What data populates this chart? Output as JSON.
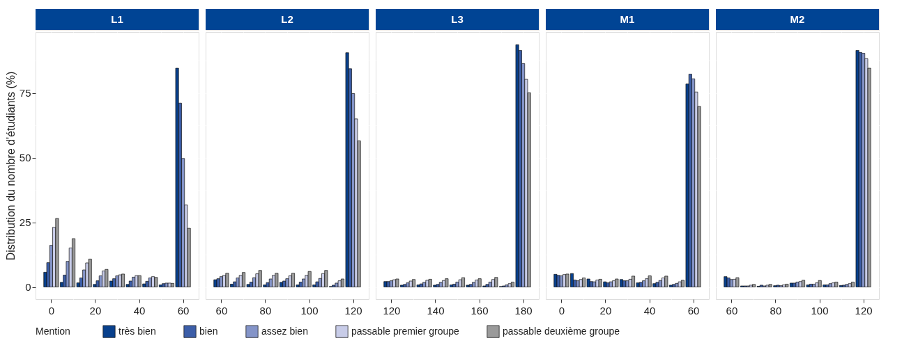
{
  "chart_data": [
    {
      "type": "bar",
      "title": "L1",
      "ylabel": "Distribution du nombre d'étudiants (%)",
      "legend_title": "Mention",
      "legend": "bottom",
      "grid": true,
      "x": [
        0,
        7.5,
        15,
        22.5,
        30,
        37.5,
        45,
        52.5,
        60
      ],
      "xlim": [
        -7.1,
        67.1
      ],
      "xticks": [
        0,
        {
          "value": 10,
          "label": null
        },
        20,
        {
          "value": 30,
          "label": null
        },
        40,
        {
          "value": 50,
          "label": null
        },
        60
      ],
      "ylim": [
        -4.7,
        98.6
      ],
      "yticks": [
        0,
        {
          "value": 12.5,
          "label": null
        },
        25,
        {
          "value": 37.5,
          "label": null
        },
        50,
        {
          "value": 62.5,
          "label": null
        },
        75,
        {
          "value": 87.5,
          "label": null
        }
      ],
      "series": [
        {
          "name": "très bien",
          "color": "#08408c",
          "values": [
            5.7,
            1.8,
            1.6,
            1.0,
            2.3,
            1.0,
            1.2,
            0.8,
            84.6
          ]
        },
        {
          "name": "bien",
          "color": "#3c5ea8",
          "values": [
            9.4,
            4.6,
            3.5,
            2.4,
            3.2,
            2.3,
            2.2,
            1.3,
            71.1
          ]
        },
        {
          "name": "assez bien",
          "color": "#8494c8",
          "values": [
            16.1,
            9.9,
            6.6,
            4.3,
            4.3,
            3.8,
            3.5,
            1.5,
            49.7
          ]
        },
        {
          "name": "passable premier groupe",
          "color": "#c8cce8",
          "values": [
            23.1,
            15.1,
            9.3,
            6.2,
            4.7,
            4.4,
            4.0,
            1.5,
            31.7
          ]
        },
        {
          "name": "passable deuxième groupe",
          "color": "#9a9a9a",
          "values": [
            26.5,
            18.7,
            10.8,
            6.8,
            5.0,
            4.4,
            3.7,
            1.4,
            22.7
          ]
        }
      ]
    },
    {
      "type": "bar",
      "title": "L2",
      "grid": true,
      "tick_labels": "x",
      "x": [
        60,
        67.5,
        75,
        82.5,
        90,
        97.5,
        105,
        112.5,
        120
      ],
      "xlim": [
        52.9,
        127.1
      ],
      "xticks": [
        60,
        {
          "value": 70,
          "label": null
        },
        80,
        {
          "value": 90,
          "label": null
        },
        100,
        {
          "value": 110,
          "label": null
        },
        120
      ],
      "ylim": [
        -4.7,
        98.6
      ],
      "yticks": [
        0,
        {
          "value": 12.5,
          "label": null
        },
        25,
        {
          "value": 37.5,
          "label": null
        },
        50,
        {
          "value": 62.5,
          "label": null
        },
        75,
        {
          "value": 87.5,
          "label": null
        }
      ],
      "series": [
        {
          "name": "très bien",
          "color": "#08408c",
          "values": [
            2.8,
            1.1,
            1.0,
            0.8,
            1.8,
            0.8,
            0.8,
            0.2,
            90.6
          ]
        },
        {
          "name": "bien",
          "color": "#3c5ea8",
          "values": [
            3.2,
            2.0,
            1.9,
            1.7,
            2.3,
            1.9,
            2.0,
            0.7,
            84.4
          ]
        },
        {
          "name": "assez bien",
          "color": "#8494c8",
          "values": [
            4.0,
            3.5,
            3.6,
            3.1,
            3.2,
            3.1,
            3.3,
            1.5,
            74.8
          ]
        },
        {
          "name": "passable premier groupe",
          "color": "#c8cce8",
          "values": [
            4.5,
            4.5,
            5.1,
            4.5,
            4.3,
            4.5,
            5.2,
            2.4,
            65.0
          ]
        },
        {
          "name": "passable deuxième groupe",
          "color": "#9a9a9a",
          "values": [
            5.3,
            5.6,
            6.4,
            5.3,
            5.3,
            6.0,
            6.4,
            3.1,
            56.5
          ]
        }
      ]
    },
    {
      "type": "bar",
      "title": "L3",
      "grid": true,
      "tick_labels": "x",
      "x": [
        120,
        127.5,
        135,
        142.5,
        150,
        157.5,
        165,
        172.5,
        180
      ],
      "xlim": [
        112.9,
        187.1
      ],
      "xticks": [
        120,
        {
          "value": 130,
          "label": null
        },
        140,
        {
          "value": 150,
          "label": null
        },
        160,
        {
          "value": 170,
          "label": null
        },
        180
      ],
      "ylim": [
        -4.7,
        98.6
      ],
      "yticks": [
        0,
        {
          "value": 12.5,
          "label": null
        },
        25,
        {
          "value": 37.5,
          "label": null
        },
        50,
        {
          "value": 62.5,
          "label": null
        },
        75,
        {
          "value": 87.5,
          "label": null
        }
      ],
      "series": [
        {
          "name": "très bien",
          "color": "#08408c",
          "values": [
            2.1,
            0.7,
            0.8,
            0.7,
            0.8,
            0.7,
            0.4,
            0.2,
            93.7
          ]
        },
        {
          "name": "bien",
          "color": "#3c5ea8",
          "values": [
            2.1,
            1.0,
            1.2,
            1.0,
            1.1,
            1.0,
            1.0,
            0.4,
            91.5
          ]
        },
        {
          "name": "assez bien",
          "color": "#8494c8",
          "values": [
            2.4,
            1.6,
            1.8,
            1.8,
            1.9,
            1.8,
            1.9,
            0.8,
            86.4
          ]
        },
        {
          "name": "passable premier groupe",
          "color": "#c8cce8",
          "values": [
            2.8,
            2.3,
            2.6,
            2.5,
            2.8,
            2.7,
            2.9,
            1.3,
            80.3
          ]
        },
        {
          "name": "passable deuxième groupe",
          "color": "#9a9a9a",
          "values": [
            3.1,
            2.9,
            3.0,
            3.2,
            3.6,
            3.2,
            3.7,
            1.9,
            75.1
          ]
        }
      ]
    },
    {
      "type": "bar",
      "title": "M1",
      "grid": true,
      "tick_labels": "x",
      "x": [
        0,
        7.5,
        15,
        22.5,
        30,
        37.5,
        45,
        52.5,
        60
      ],
      "xlim": [
        -7.1,
        67.1
      ],
      "xticks": [
        0,
        {
          "value": 10,
          "label": null
        },
        20,
        {
          "value": 30,
          "label": null
        },
        40,
        {
          "value": 50,
          "label": null
        },
        60
      ],
      "ylim": [
        -4.7,
        98.6
      ],
      "yticks": [
        0,
        {
          "value": 12.5,
          "label": null
        },
        25,
        {
          "value": 37.5,
          "label": null
        },
        50,
        {
          "value": 62.5,
          "label": null
        },
        75,
        {
          "value": 87.5,
          "label": null
        }
      ],
      "series": [
        {
          "name": "très bien",
          "color": "#08408c",
          "values": [
            4.9,
            5.2,
            3.1,
            2.0,
            2.9,
            1.6,
            1.3,
            0.7,
            78.5
          ]
        },
        {
          "name": "bien",
          "color": "#3c5ea8",
          "values": [
            4.5,
            2.7,
            2.1,
            1.6,
            2.4,
            1.8,
            1.8,
            1.0,
            82.3
          ]
        },
        {
          "name": "assez bien",
          "color": "#8494c8",
          "values": [
            4.3,
            2.4,
            2.0,
            2.0,
            2.4,
            2.4,
            2.5,
            1.4,
            80.5
          ]
        },
        {
          "name": "passable premier groupe",
          "color": "#c8cce8",
          "values": [
            4.8,
            2.9,
            2.7,
            2.4,
            3.0,
            3.2,
            3.5,
            2.0,
            75.4
          ]
        },
        {
          "name": "passable deuxième groupe",
          "color": "#9a9a9a",
          "values": [
            5.0,
            3.5,
            3.0,
            3.1,
            4.2,
            4.3,
            4.2,
            2.6,
            69.8
          ]
        }
      ]
    },
    {
      "type": "bar",
      "title": "M2",
      "grid": true,
      "tick_labels": "x",
      "x": [
        60,
        67.5,
        75,
        82.5,
        90,
        97.5,
        105,
        112.5,
        120
      ],
      "xlim": [
        52.9,
        127.1
      ],
      "xticks": [
        60,
        {
          "value": 70,
          "label": null
        },
        80,
        {
          "value": 90,
          "label": null
        },
        100,
        {
          "value": 110,
          "label": null
        },
        120
      ],
      "ylim": [
        -4.7,
        98.6
      ],
      "yticks": [
        0,
        {
          "value": 12.5,
          "label": null
        },
        25,
        {
          "value": 37.5,
          "label": null
        },
        50,
        {
          "value": 62.5,
          "label": null
        },
        75,
        {
          "value": 87.5,
          "label": null
        }
      ],
      "series": [
        {
          "name": "très bien",
          "color": "#08408c",
          "values": [
            4.0,
            0.4,
            0.3,
            0.5,
            1.5,
            0.8,
            0.8,
            0.6,
            91.5
          ]
        },
        {
          "name": "bien",
          "color": "#3c5ea8",
          "values": [
            3.5,
            0.4,
            0.7,
            0.7,
            1.5,
            1.1,
            0.8,
            0.7,
            90.7
          ]
        },
        {
          "name": "assez bien",
          "color": "#8494c8",
          "values": [
            2.9,
            0.4,
            0.4,
            0.5,
            1.9,
            1.1,
            1.3,
            1.0,
            90.4
          ]
        },
        {
          "name": "passable premier groupe",
          "color": "#c8cce8",
          "values": [
            3.0,
            0.7,
            0.7,
            0.8,
            2.1,
            1.6,
            1.6,
            1.3,
            88.3
          ]
        },
        {
          "name": "passable deuxième groupe",
          "color": "#9a9a9a",
          "values": [
            3.6,
            1.0,
            1.0,
            1.1,
            2.6,
            2.5,
            1.9,
            1.9,
            84.6
          ]
        }
      ]
    }
  ]
}
